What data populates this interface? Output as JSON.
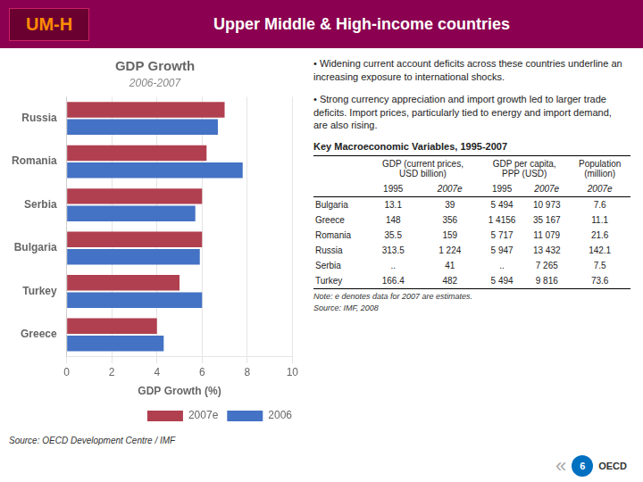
{
  "header": {
    "label": "UM-H",
    "title": "Upper Middle & High-income countries"
  },
  "chart_data": {
    "type": "bar",
    "orientation": "horizontal",
    "title": "GDP Growth",
    "subtitle": "2006-2007",
    "categories": [
      "Russia",
      "Romania",
      "Serbia",
      "Bulgaria",
      "Turkey",
      "Greece"
    ],
    "series": [
      {
        "name": "2007e",
        "color": "#B04050",
        "values": [
          7.0,
          6.2,
          6.0,
          6.0,
          5.0,
          4.0
        ]
      },
      {
        "name": "2006",
        "color": "#4472C4",
        "values": [
          6.7,
          7.8,
          5.7,
          5.9,
          6.0,
          4.3
        ]
      }
    ],
    "xlim": [
      0,
      10
    ],
    "xticks": [
      0,
      2,
      4,
      6,
      8,
      10
    ],
    "xlabel": "GDP Growth (%)",
    "grid": true,
    "legend": "lower right",
    "source": "Source: OECD Development Centre / IMF"
  },
  "notes": [
    "• Widening current account deficits across these countries underline an increasing exposure to international shocks.",
    "• Strong currency appreciation and import growth led to larger trade deficits. Import prices, particularly tied to energy and import demand,  are also rising."
  ],
  "table": {
    "title": "Key Macroeconomic Variables, 1995-2007",
    "groups": [
      {
        "label": "GDP (current prices,\nUSD billion)",
        "columns": [
          "1995",
          "2007e"
        ]
      },
      {
        "label": "GDP per capita,\nPPP (USD)",
        "columns": [
          "1995",
          "2007e"
        ]
      },
      {
        "label": "Population\n(million)",
        "columns": [
          "2007e"
        ]
      }
    ],
    "rows": [
      [
        "Bulgaria",
        "13.1",
        "39",
        "5 494",
        "10 973",
        "7.6"
      ],
      [
        "Greece",
        "148",
        "356",
        "1 4156",
        "35 167",
        "11.1"
      ],
      [
        "Romania",
        "35.5",
        "159",
        "5 717",
        "11 079",
        "21.6"
      ],
      [
        "Russia",
        "313.5",
        "1 224",
        "5 947",
        "13 432",
        "142.1"
      ],
      [
        "Serbia",
        "..",
        "41",
        "..",
        "7 265",
        "7.5"
      ],
      [
        "Turkey",
        "166.4",
        "482",
        "5 494",
        "9 816",
        "73.6"
      ]
    ],
    "note": "Note: e denotes data for 2007 are estimates.",
    "source": "Source: IMF, 2008"
  },
  "logo": [
    "«",
    "6",
    "OECD"
  ]
}
